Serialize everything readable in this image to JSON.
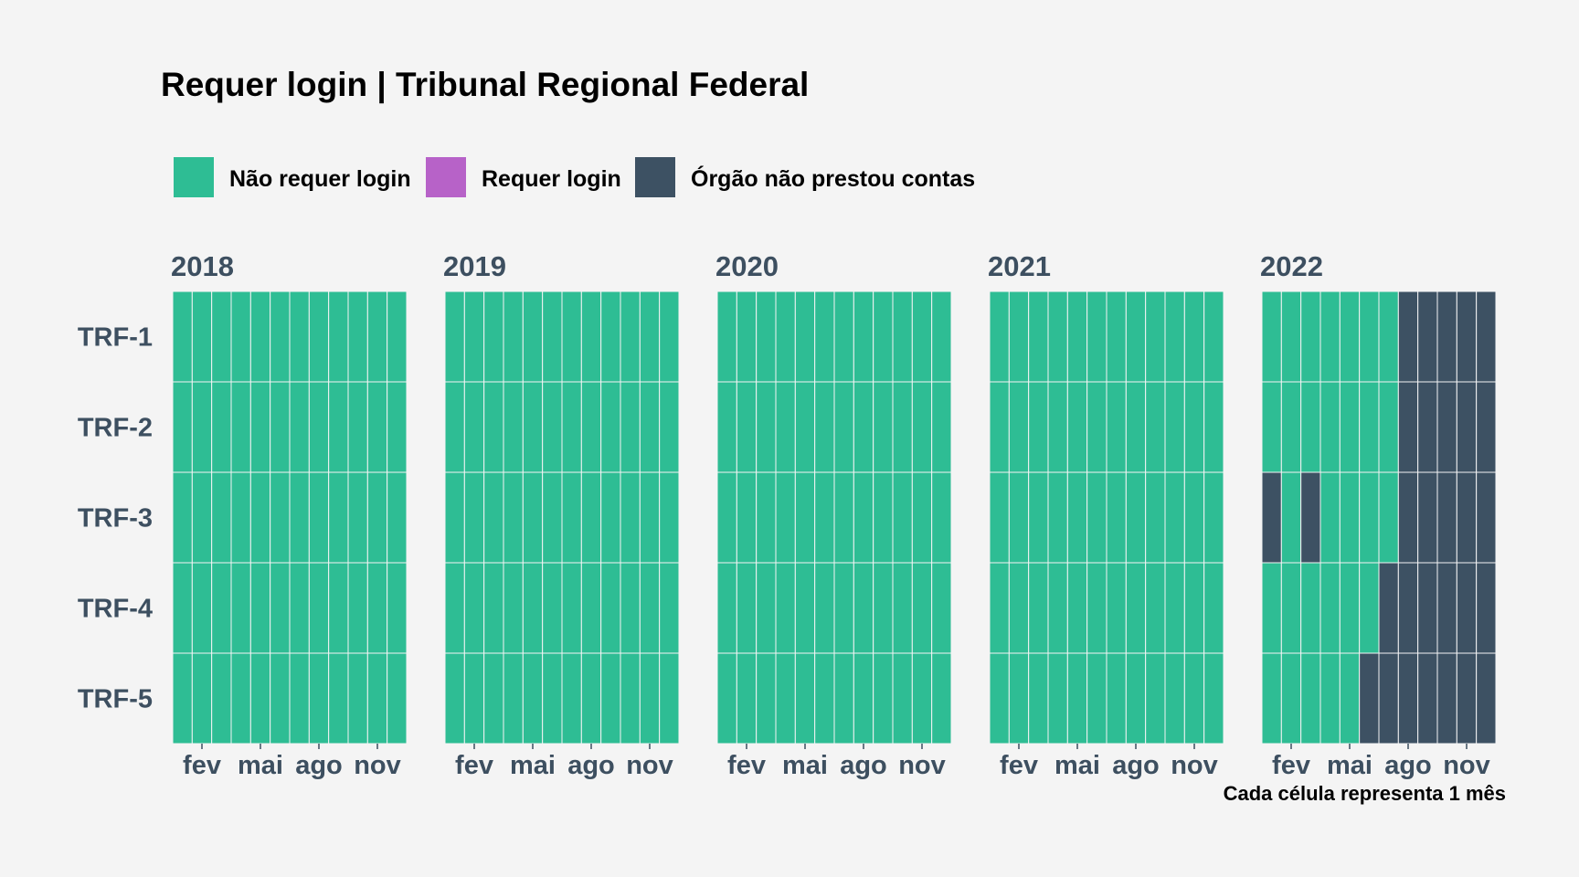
{
  "title": "Requer login | Tribunal Regional Federal",
  "legend": [
    {
      "label": "Não requer login",
      "color": "#2ebd94"
    },
    {
      "label": "Requer login",
      "color": "#b762c8"
    },
    {
      "label": "Órgão não prestou contas",
      "color": "#3d5163"
    }
  ],
  "caption": "Cada célula representa 1 mês",
  "colors": {
    "background": "#f4f4f4",
    "label": "#3d4f60",
    "grid_line": "#f4f4f4"
  },
  "chart_data": {
    "type": "heatmap",
    "title": "Requer login | Tribunal Regional Federal",
    "facets": [
      "2018",
      "2019",
      "2020",
      "2021",
      "2022"
    ],
    "rows": [
      "TRF-1",
      "TRF-2",
      "TRF-3",
      "TRF-4",
      "TRF-5"
    ],
    "months": [
      "jan",
      "fev",
      "mar",
      "abr",
      "mai",
      "jun",
      "jul",
      "ago",
      "set",
      "out",
      "nov",
      "dez"
    ],
    "x_tick_labels": [
      "fev",
      "mai",
      "ago",
      "nov"
    ],
    "x_tick_months": [
      2,
      5,
      8,
      11
    ],
    "categories": [
      "Não requer login",
      "Requer login",
      "Órgão não prestou contas"
    ],
    "legend_position": "top",
    "grid": false,
    "values": {
      "2018": {
        "TRF-1": [
          "N",
          "N",
          "N",
          "N",
          "N",
          "N",
          "N",
          "N",
          "N",
          "N",
          "N",
          "N"
        ],
        "TRF-2": [
          "N",
          "N",
          "N",
          "N",
          "N",
          "N",
          "N",
          "N",
          "N",
          "N",
          "N",
          "N"
        ],
        "TRF-3": [
          "N",
          "N",
          "N",
          "N",
          "N",
          "N",
          "N",
          "N",
          "N",
          "N",
          "N",
          "N"
        ],
        "TRF-4": [
          "N",
          "N",
          "N",
          "N",
          "N",
          "N",
          "N",
          "N",
          "N",
          "N",
          "N",
          "N"
        ],
        "TRF-5": [
          "N",
          "N",
          "N",
          "N",
          "N",
          "N",
          "N",
          "N",
          "N",
          "N",
          "N",
          "N"
        ]
      },
      "2019": {
        "TRF-1": [
          "N",
          "N",
          "N",
          "N",
          "N",
          "N",
          "N",
          "N",
          "N",
          "N",
          "N",
          "N"
        ],
        "TRF-2": [
          "N",
          "N",
          "N",
          "N",
          "N",
          "N",
          "N",
          "N",
          "N",
          "N",
          "N",
          "N"
        ],
        "TRF-3": [
          "N",
          "N",
          "N",
          "N",
          "N",
          "N",
          "N",
          "N",
          "N",
          "N",
          "N",
          "N"
        ],
        "TRF-4": [
          "N",
          "N",
          "N",
          "N",
          "N",
          "N",
          "N",
          "N",
          "N",
          "N",
          "N",
          "N"
        ],
        "TRF-5": [
          "N",
          "N",
          "N",
          "N",
          "N",
          "N",
          "N",
          "N",
          "N",
          "N",
          "N",
          "N"
        ]
      },
      "2020": {
        "TRF-1": [
          "N",
          "N",
          "N",
          "N",
          "N",
          "N",
          "N",
          "N",
          "N",
          "N",
          "N",
          "N"
        ],
        "TRF-2": [
          "N",
          "N",
          "N",
          "N",
          "N",
          "N",
          "N",
          "N",
          "N",
          "N",
          "N",
          "N"
        ],
        "TRF-3": [
          "N",
          "N",
          "N",
          "N",
          "N",
          "N",
          "N",
          "N",
          "N",
          "N",
          "N",
          "N"
        ],
        "TRF-4": [
          "N",
          "N",
          "N",
          "N",
          "N",
          "N",
          "N",
          "N",
          "N",
          "N",
          "N",
          "N"
        ],
        "TRF-5": [
          "N",
          "N",
          "N",
          "N",
          "N",
          "N",
          "N",
          "N",
          "N",
          "N",
          "N",
          "N"
        ]
      },
      "2021": {
        "TRF-1": [
          "N",
          "N",
          "N",
          "N",
          "N",
          "N",
          "N",
          "N",
          "N",
          "N",
          "N",
          "N"
        ],
        "TRF-2": [
          "N",
          "N",
          "N",
          "N",
          "N",
          "N",
          "N",
          "N",
          "N",
          "N",
          "N",
          "N"
        ],
        "TRF-3": [
          "N",
          "N",
          "N",
          "N",
          "N",
          "N",
          "N",
          "N",
          "N",
          "N",
          "N",
          "N"
        ],
        "TRF-4": [
          "N",
          "N",
          "N",
          "N",
          "N",
          "N",
          "N",
          "N",
          "N",
          "N",
          "N",
          "N"
        ],
        "TRF-5": [
          "N",
          "N",
          "N",
          "N",
          "N",
          "N",
          "N",
          "N",
          "N",
          "N",
          "N",
          "N"
        ]
      },
      "2022": {
        "TRF-1": [
          "N",
          "N",
          "N",
          "N",
          "N",
          "N",
          "N",
          "O",
          "O",
          "O",
          "O",
          "O"
        ],
        "TRF-2": [
          "N",
          "N",
          "N",
          "N",
          "N",
          "N",
          "N",
          "O",
          "O",
          "O",
          "O",
          "O"
        ],
        "TRF-3": [
          "O",
          "N",
          "O",
          "N",
          "N",
          "N",
          "N",
          "O",
          "O",
          "O",
          "O",
          "O"
        ],
        "TRF-4": [
          "N",
          "N",
          "N",
          "N",
          "N",
          "N",
          "O",
          "O",
          "O",
          "O",
          "O",
          "O"
        ],
        "TRF-5": [
          "N",
          "N",
          "N",
          "N",
          "N",
          "O",
          "O",
          "O",
          "O",
          "O",
          "O",
          "O"
        ]
      }
    },
    "code_map": {
      "N": "Não requer login",
      "R": "Requer login",
      "O": "Órgão não prestou contas"
    }
  }
}
